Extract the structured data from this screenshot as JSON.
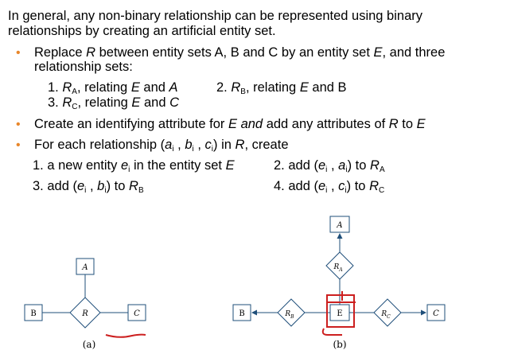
{
  "intro": {
    "line1": "In general, any non-binary relationship can be represented using binary",
    "line2": "relationships by creating an artificial entity set."
  },
  "bullet1": {
    "pre": "Replace ",
    "r": "R",
    "mid": " between entity sets A, B and C by an entity set ",
    "e": "E",
    "post": ", and three",
    "line2": "relationship sets:"
  },
  "list1": {
    "item1": {
      "num": "1. ",
      "r": "R",
      "sub": "A",
      "text": ", relating ",
      "e": "E",
      "rest": " and ",
      "a": "A"
    },
    "item2": {
      "num": "2. ",
      "r": "R",
      "sub": "B",
      "text": ", relating ",
      "e": "E",
      "rest": " and B"
    },
    "item3": {
      "num": "3. ",
      "r": "R",
      "sub": "C",
      "text": ", relating ",
      "e": "E",
      "rest": " and ",
      "c": "C"
    }
  },
  "bullet2": {
    "pre": "Create an identifying attribute for ",
    "e": "E and",
    "mid": " add any attributes of ",
    "r": "R",
    "post": " to ",
    "e2": "E"
  },
  "bullet3": {
    "pre": "For each relationship (",
    "a": "a",
    "b": "b",
    "c": "c",
    "i": "i",
    "mid": ") in ",
    "r": "R",
    "post": ", create"
  },
  "steps": {
    "s1": {
      "pre": "1. a new entity ",
      "e": "e",
      "i": "i",
      "mid": " in the entity set ",
      "E": "E"
    },
    "s2": {
      "pre": "2. add (",
      "e": "e",
      "i": "i",
      "sep": " , ",
      "a": "a",
      "close": ") to ",
      "r": "R",
      "sub": "A"
    },
    "s3": {
      "pre": "3. add (",
      "e": "e",
      "i": "i",
      "sep": " , ",
      "b": "b",
      "close": ") to ",
      "r": "R",
      "sub": "B"
    },
    "s4": {
      "pre": "4. add (",
      "e": "e",
      "i": "i",
      "sep": " , ",
      "c": "c",
      "close": ") to ",
      "r": "R",
      "sub": "C"
    }
  },
  "figure_a": {
    "entity_a": "A",
    "entity_b": "B",
    "entity_c": "C",
    "relationship": "R",
    "caption": "(a)"
  },
  "figure_b": {
    "entity_a": "A",
    "entity_b": "B",
    "entity_c": "C",
    "entity_e": "E",
    "rel_a": "R",
    "rel_a_sub": "A",
    "rel_b": "R",
    "rel_b_sub": "B",
    "rel_c": "R",
    "rel_c_sub": "C",
    "caption": "(b)"
  },
  "colors": {
    "text": "#000000",
    "bullet": "#e8862a",
    "figure": "#1f4f7a",
    "annotation": "#cc1f1f"
  }
}
